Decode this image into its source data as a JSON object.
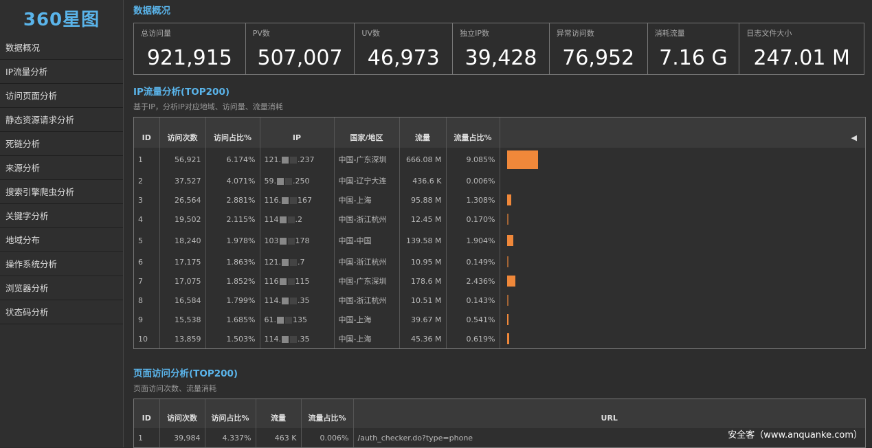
{
  "logo": "360星图",
  "sidebar": [
    "数据概况",
    "IP流量分析",
    "访问页面分析",
    "静态资源请求分析",
    "死链分析",
    "来源分析",
    "搜索引擎爬虫分析",
    "关键字分析",
    "地域分布",
    "操作系统分析",
    "浏览器分析",
    "状态码分析"
  ],
  "overview": {
    "title": "数据概况",
    "stats": [
      {
        "label": "总访问量",
        "value": "921,915"
      },
      {
        "label": "PV数",
        "value": "507,007"
      },
      {
        "label": "UV数",
        "value": "46,973"
      },
      {
        "label": "独立IP数",
        "value": "39,428"
      },
      {
        "label": "异常访问数",
        "value": "76,952"
      },
      {
        "label": "消耗流量",
        "value": "7.16 G"
      },
      {
        "label": "日志文件大小",
        "value": "247.01 M"
      }
    ]
  },
  "ip": {
    "title": "IP流量分析(TOP200)",
    "subtitle": "基于IP，分析IP对应地域、访问量、流量消耗",
    "headers": [
      "ID",
      "访问次数",
      "访问占比%",
      "IP",
      "国家/地区",
      "流量",
      "流量占比%",
      ""
    ],
    "collapse_icon": "◀",
    "rows": [
      [
        "1",
        "56,921",
        "6.174%",
        "121.",
        ".237",
        "中国-广东深圳",
        "666.08 M",
        "9.085%",
        9.085
      ],
      [
        "2",
        "37,527",
        "4.071%",
        "59.",
        ".250",
        "中国-辽宁大连",
        "436.6 K",
        "0.006%",
        0.006
      ],
      [
        "3",
        "26,564",
        "2.881%",
        "116.",
        "167",
        "中国-上海",
        "95.88 M",
        "1.308%",
        1.308
      ],
      [
        "4",
        "19,502",
        "2.115%",
        "114",
        ".2",
        "中国-浙江杭州",
        "12.45 M",
        "0.170%",
        0.17
      ],
      [
        "5",
        "18,240",
        "1.978%",
        "103",
        "178",
        "中国-中国",
        "139.58 M",
        "1.904%",
        1.904
      ],
      [
        "6",
        "17,175",
        "1.863%",
        "121.",
        ".7",
        "中国-浙江杭州",
        "10.95 M",
        "0.149%",
        0.149
      ],
      [
        "7",
        "17,075",
        "1.852%",
        "116",
        "115",
        "中国-广东深圳",
        "178.6 M",
        "2.436%",
        2.436
      ],
      [
        "8",
        "16,584",
        "1.799%",
        "114.",
        ".35",
        "中国-浙江杭州",
        "10.51 M",
        "0.143%",
        0.143
      ],
      [
        "9",
        "15,538",
        "1.685%",
        "61.",
        "135",
        "中国-上海",
        "39.67 M",
        "0.541%",
        0.541
      ],
      [
        "10",
        "13,859",
        "1.503%",
        "114.",
        ".35",
        "中国-上海",
        "45.36 M",
        "0.619%",
        0.619
      ]
    ]
  },
  "page": {
    "title": "页面访问分析(TOP200)",
    "subtitle": "页面访问次数、流量消耗",
    "headers": [
      "ID",
      "访问次数",
      "访问占比%",
      "流量",
      "流量占比%",
      "URL"
    ],
    "collapse_icon": "◀",
    "rows": [
      [
        "1",
        "39,984",
        "4.337%",
        "463 K",
        "0.006%",
        "/auth_checker.do?type=phone"
      ]
    ]
  },
  "watermark": "安全客（www.anquanke.com）",
  "colors": {
    "accent": "#5ab4ea",
    "bar": "#f0883a"
  }
}
